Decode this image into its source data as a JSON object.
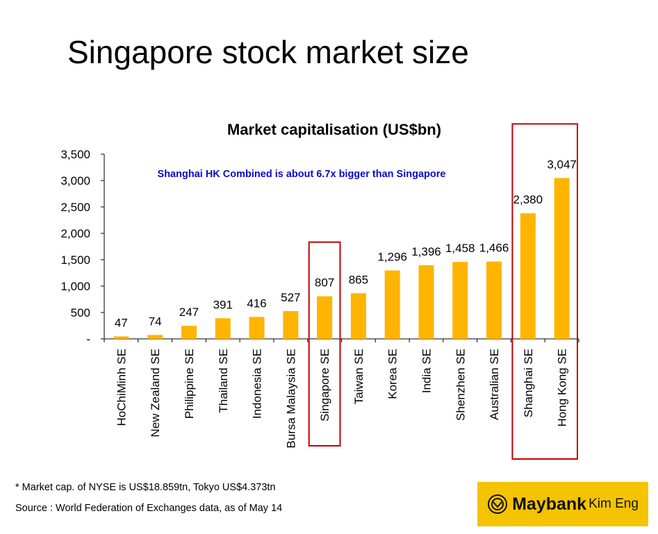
{
  "slide": {
    "title": "Singapore stock market size",
    "footnote": "* Market cap. of NYSE is US$18.859tn, Tokyo US$4.373tn",
    "source": "Source : World Federation of Exchanges data, as of May 14",
    "logo": {
      "brand": "Maybank",
      "sub": "Kim Eng",
      "color": "#F5C400",
      "icon": "tiger-head-icon"
    }
  },
  "chart_data": {
    "type": "bar",
    "title": "Market capitalisation (US$bn)",
    "annotation": "Shanghai HK Combined is about 6.7x bigger than Singapore",
    "annotation_color": "#0A0ACC",
    "categories": [
      "HoChiMinh SE",
      "New Zealand SE",
      "Philippine SE",
      "Thailand SE",
      "Indonesia SE",
      "Bursa Malaysia SE",
      "Singapore SE",
      "Taiwan SE",
      "Korea SE",
      "India SE",
      "Shenzhen SE",
      "Australian SE",
      "Shanghai SE",
      "Hong Kong SE"
    ],
    "values": [
      47,
      74,
      247,
      391,
      416,
      527,
      807,
      865,
      1296,
      1396,
      1458,
      1466,
      2380,
      3047
    ],
    "data_labels": [
      "47",
      "74",
      "247",
      "391",
      "416",
      "527",
      "807",
      "865",
      "1,296",
      "1,396",
      "1,458",
      "1,466",
      "2,380",
      "3,047"
    ],
    "y_ticks": [
      0,
      500,
      1000,
      1500,
      2000,
      2500,
      3000,
      3500
    ],
    "y_tick_labels": [
      "-",
      "500",
      "1,000",
      "1,500",
      "2,000",
      "2,500",
      "3,000",
      "3,500"
    ],
    "ylim": [
      0,
      3500
    ],
    "grid": false,
    "bar_color": "#FFB400",
    "highlight_color": "#C00000",
    "highlight_groups": [
      [
        "Singapore SE"
      ],
      [
        "Shanghai SE",
        "Hong Kong SE"
      ]
    ]
  }
}
